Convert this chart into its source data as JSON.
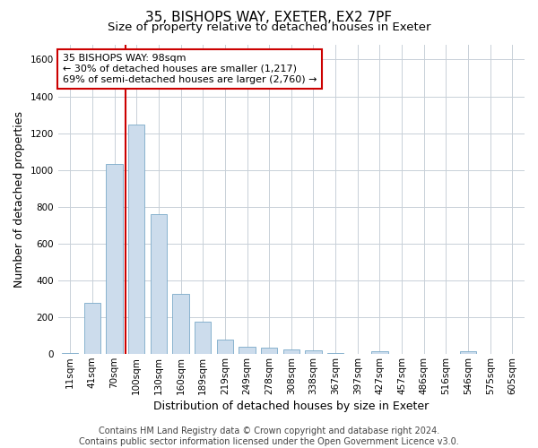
{
  "title_line1": "35, BISHOPS WAY, EXETER, EX2 7PF",
  "title_line2": "Size of property relative to detached houses in Exeter",
  "xlabel": "Distribution of detached houses by size in Exeter",
  "ylabel": "Number of detached properties",
  "bar_color": "#ccdcec",
  "bar_edge_color": "#7aaac8",
  "bin_labels": [
    "11sqm",
    "41sqm",
    "70sqm",
    "100sqm",
    "130sqm",
    "160sqm",
    "189sqm",
    "219sqm",
    "249sqm",
    "278sqm",
    "308sqm",
    "338sqm",
    "367sqm",
    "397sqm",
    "427sqm",
    "457sqm",
    "486sqm",
    "516sqm",
    "546sqm",
    "575sqm",
    "605sqm"
  ],
  "bar_values": [
    8,
    278,
    1035,
    1248,
    758,
    328,
    178,
    78,
    40,
    36,
    24,
    18,
    8,
    0,
    14,
    0,
    0,
    0,
    14,
    0,
    0
  ],
  "vline_color": "#cc0000",
  "ylim": [
    0,
    1680
  ],
  "yticks": [
    0,
    200,
    400,
    600,
    800,
    1000,
    1200,
    1400,
    1600
  ],
  "annotation_text": "35 BISHOPS WAY: 98sqm\n← 30% of detached houses are smaller (1,217)\n69% of semi-detached houses are larger (2,760) →",
  "footer_text": "Contains HM Land Registry data © Crown copyright and database right 2024.\nContains public sector information licensed under the Open Government Licence v3.0.",
  "background_color": "#ffffff",
  "plot_bg_color": "#ffffff",
  "grid_color": "#c8d0d8",
  "title_fontsize": 11,
  "subtitle_fontsize": 9.5,
  "axis_label_fontsize": 9,
  "tick_fontsize": 7.5,
  "footer_fontsize": 7,
  "ann_fontsize": 8
}
